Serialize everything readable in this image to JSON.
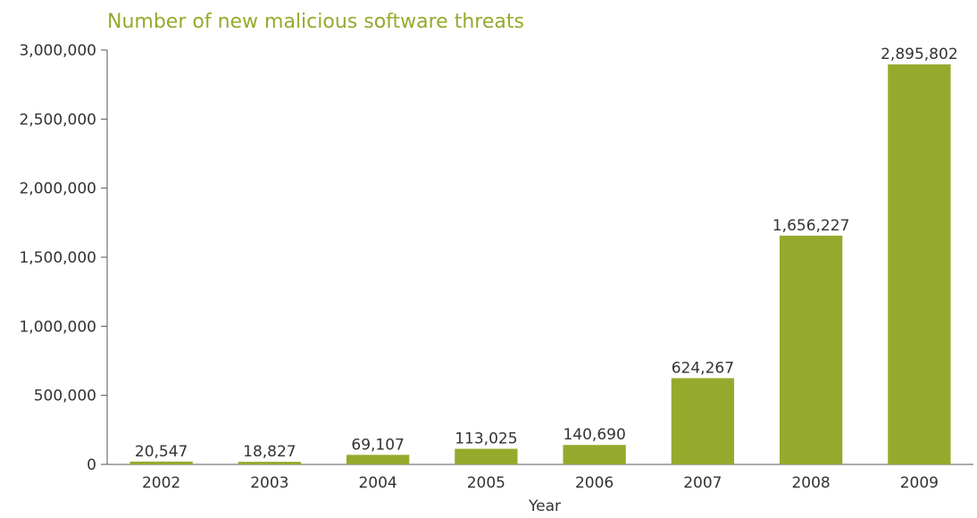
{
  "chart_data": {
    "type": "bar",
    "title": "Number of new malicious software threats",
    "xlabel": "Year",
    "ylabel": "",
    "categories": [
      "2002",
      "2003",
      "2004",
      "2005",
      "2006",
      "2007",
      "2008",
      "2009"
    ],
    "values": [
      20547,
      18827,
      69107,
      113025,
      140690,
      624267,
      1656227,
      2895802
    ],
    "value_labels": [
      "20,547",
      "18,827",
      "69,107",
      "113,025",
      "140,690",
      "624,267",
      "1,656,227",
      "2,895,802"
    ],
    "yticks": [
      0,
      500000,
      1000000,
      1500000,
      2000000,
      2500000,
      3000000
    ],
    "ytick_labels": [
      "0",
      "500,000",
      "1,000,000",
      "1,500,000",
      "2,000,000",
      "2,500,000",
      "3,000,000"
    ],
    "ylim": [
      0,
      3000000
    ],
    "grid": false,
    "legend": "none",
    "colors": {
      "bar": "#95aa2c",
      "title": "#95aa2c",
      "axis": "#555555",
      "text": "#333333"
    }
  }
}
